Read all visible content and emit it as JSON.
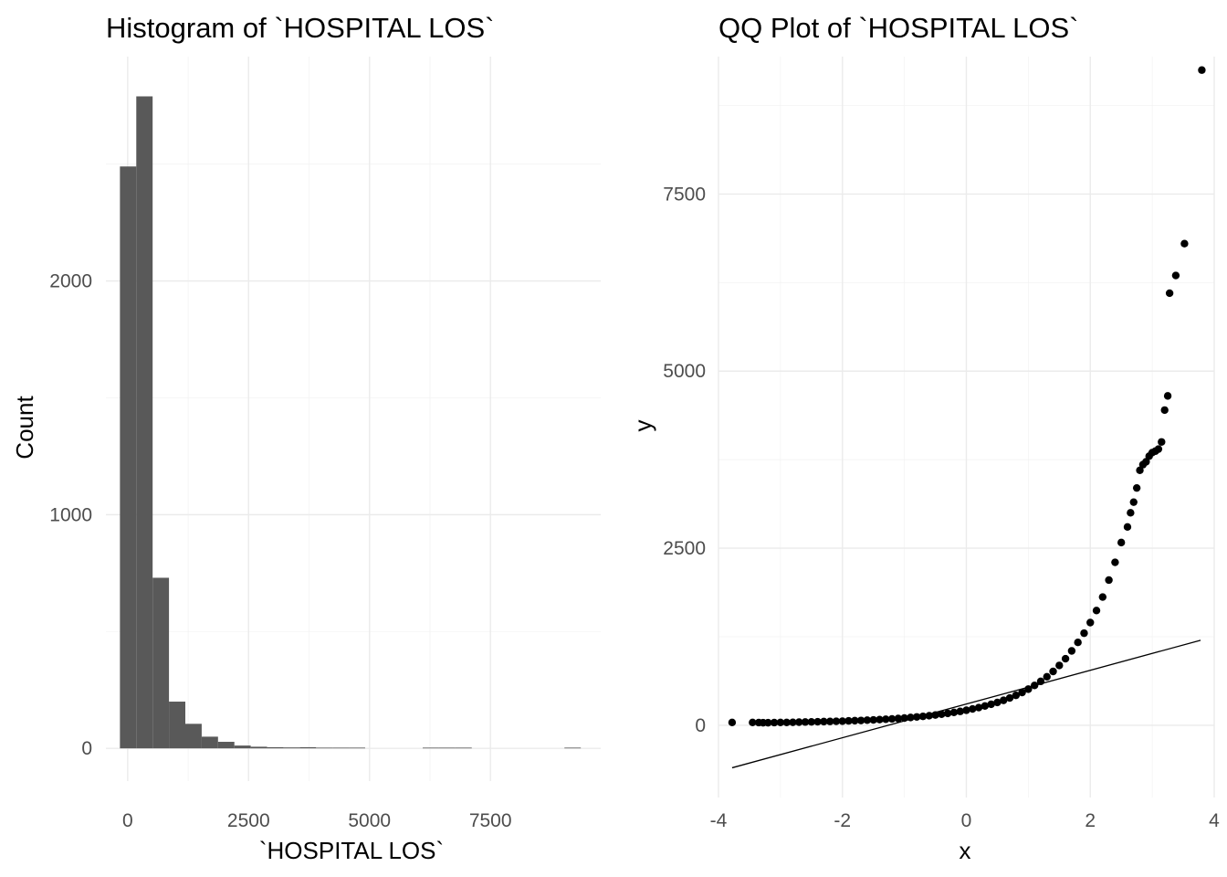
{
  "chart_data": [
    {
      "type": "bar",
      "title": "Histogram of `HOSPITAL LOS`",
      "xlabel": "`HOSPITAL LOS`",
      "ylabel": "Count",
      "xlim": [
        -450,
        9780
      ],
      "ylim": [
        -140,
        2960
      ],
      "x_ticks": [
        0,
        2500,
        5000,
        7500
      ],
      "x_tick_labels": [
        "0",
        "2500",
        "5000",
        "7500"
      ],
      "y_ticks": [
        0,
        1000,
        2000
      ],
      "y_tick_labels": [
        "0",
        "1000",
        "2000"
      ],
      "bin_width": 338,
      "bins": [
        {
          "x0": -160,
          "x1": 178,
          "count": 2490
        },
        {
          "x0": 178,
          "x1": 516,
          "count": 2790
        },
        {
          "x0": 516,
          "x1": 854,
          "count": 730
        },
        {
          "x0": 854,
          "x1": 1192,
          "count": 200
        },
        {
          "x0": 1192,
          "x1": 1530,
          "count": 105
        },
        {
          "x0": 1530,
          "x1": 1868,
          "count": 50
        },
        {
          "x0": 1868,
          "x1": 2206,
          "count": 28
        },
        {
          "x0": 2206,
          "x1": 2544,
          "count": 12
        },
        {
          "x0": 2544,
          "x1": 2882,
          "count": 7
        },
        {
          "x0": 2882,
          "x1": 3220,
          "count": 5
        },
        {
          "x0": 3220,
          "x1": 3558,
          "count": 4
        },
        {
          "x0": 3558,
          "x1": 3896,
          "count": 5
        },
        {
          "x0": 3896,
          "x1": 4234,
          "count": 2
        },
        {
          "x0": 4234,
          "x1": 4572,
          "count": 1
        },
        {
          "x0": 4572,
          "x1": 4910,
          "count": 1
        },
        {
          "x0": 6100,
          "x1": 6438,
          "count": 1
        },
        {
          "x0": 6438,
          "x1": 6776,
          "count": 1
        },
        {
          "x0": 6776,
          "x1": 7114,
          "count": 1
        },
        {
          "x0": 9030,
          "x1": 9368,
          "count": 1
        }
      ]
    },
    {
      "type": "scatter",
      "title": "QQ Plot of `HOSPITAL LOS`",
      "xlabel": "x",
      "ylabel": "y",
      "xlim": [
        -4.0,
        4.0
      ],
      "ylim": [
        -1020,
        9440
      ],
      "x_ticks": [
        -4,
        -2,
        0,
        2,
        4
      ],
      "x_tick_labels": [
        "-4",
        "-2",
        "0",
        "2",
        "4"
      ],
      "y_ticks": [
        0,
        2500,
        5000,
        7500
      ],
      "y_tick_labels": [
        "0",
        "2500",
        "5000",
        "7500"
      ],
      "reference_line": {
        "x": [
          -3.78,
          3.78
        ],
        "y": [
          -600,
          1200
        ]
      },
      "points": [
        [
          -3.78,
          40
        ],
        [
          -3.45,
          40
        ],
        [
          -3.35,
          38
        ],
        [
          -3.28,
          36
        ],
        [
          -3.2,
          36
        ],
        [
          -3.1,
          38
        ],
        [
          -3.0,
          40
        ],
        [
          -2.9,
          40
        ],
        [
          -2.8,
          42
        ],
        [
          -2.7,
          44
        ],
        [
          -2.6,
          46
        ],
        [
          -2.5,
          48
        ],
        [
          -2.4,
          50
        ],
        [
          -2.3,
          52
        ],
        [
          -2.2,
          54
        ],
        [
          -2.1,
          56
        ],
        [
          -2.0,
          58
        ],
        [
          -1.9,
          62
        ],
        [
          -1.8,
          65
        ],
        [
          -1.7,
          68
        ],
        [
          -1.6,
          72
        ],
        [
          -1.5,
          76
        ],
        [
          -1.4,
          80
        ],
        [
          -1.3,
          85
        ],
        [
          -1.2,
          90
        ],
        [
          -1.1,
          96
        ],
        [
          -1.0,
          102
        ],
        [
          -0.9,
          110
        ],
        [
          -0.8,
          118
        ],
        [
          -0.7,
          126
        ],
        [
          -0.6,
          135
        ],
        [
          -0.5,
          145
        ],
        [
          -0.4,
          156
        ],
        [
          -0.3,
          168
        ],
        [
          -0.2,
          182
        ],
        [
          -0.1,
          196
        ],
        [
          0.0,
          212
        ],
        [
          0.1,
          230
        ],
        [
          0.2,
          250
        ],
        [
          0.3,
          272
        ],
        [
          0.4,
          296
        ],
        [
          0.5,
          322
        ],
        [
          0.6,
          352
        ],
        [
          0.7,
          385
        ],
        [
          0.8,
          422
        ],
        [
          0.9,
          463
        ],
        [
          1.0,
          510
        ],
        [
          1.1,
          562
        ],
        [
          1.2,
          620
        ],
        [
          1.3,
          685
        ],
        [
          1.4,
          760
        ],
        [
          1.5,
          845
        ],
        [
          1.6,
          940
        ],
        [
          1.7,
          1050
        ],
        [
          1.8,
          1170
        ],
        [
          1.9,
          1300
        ],
        [
          2.0,
          1450
        ],
        [
          2.1,
          1620
        ],
        [
          2.2,
          1810
        ],
        [
          2.3,
          2050
        ],
        [
          2.4,
          2300
        ],
        [
          2.5,
          2580
        ],
        [
          2.6,
          2800
        ],
        [
          2.65,
          3000
        ],
        [
          2.7,
          3150
        ],
        [
          2.75,
          3350
        ],
        [
          2.8,
          3600
        ],
        [
          2.85,
          3680
        ],
        [
          2.9,
          3720
        ],
        [
          2.95,
          3800
        ],
        [
          3.0,
          3850
        ],
        [
          3.05,
          3870
        ],
        [
          3.1,
          3900
        ],
        [
          3.15,
          4000
        ],
        [
          3.2,
          4450
        ],
        [
          3.25,
          4650
        ],
        [
          3.28,
          6100
        ],
        [
          3.38,
          6350
        ],
        [
          3.52,
          6800
        ],
        [
          3.8,
          9250
        ]
      ]
    }
  ]
}
